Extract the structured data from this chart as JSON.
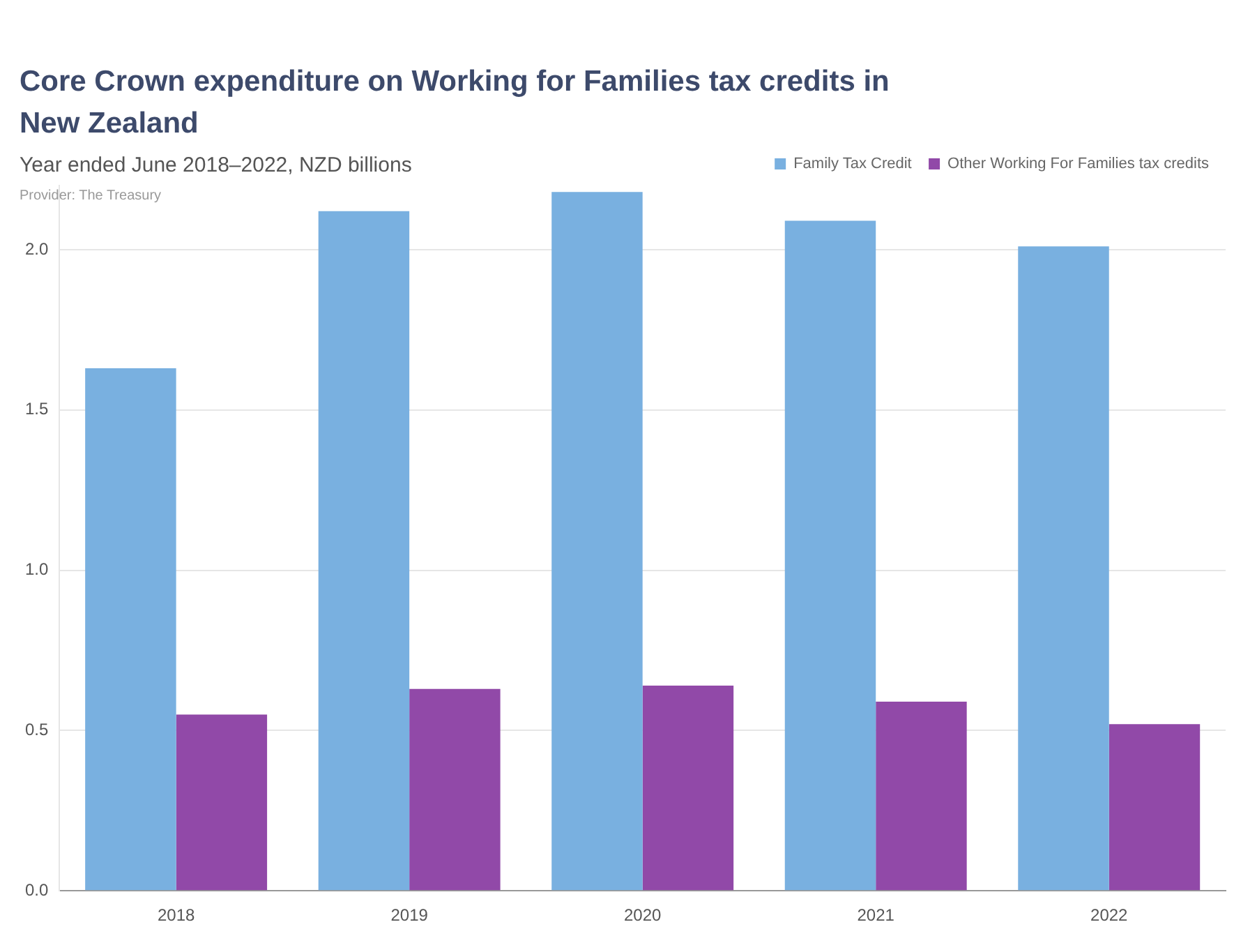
{
  "chart_data": {
    "type": "bar",
    "title": "Core Crown expenditure on Working for Families tax credits in New Zealand",
    "subtitle": "Year ended June 2018–2022, NZD billions",
    "annotations": [
      "Provider: The Treasury"
    ],
    "categories": [
      "2018",
      "2019",
      "2020",
      "2021",
      "2022"
    ],
    "series": [
      {
        "name": "Family Tax Credit",
        "color": "#79b0e0",
        "values": [
          1.63,
          2.12,
          2.18,
          2.09,
          2.01
        ]
      },
      {
        "name": "Other Working For Families tax credits",
        "color": "#9149a8",
        "values": [
          0.55,
          0.63,
          0.64,
          0.59,
          0.52
        ]
      }
    ],
    "ylim": [
      0,
      2.2
    ],
    "yticks": [
      {
        "value": 0,
        "label": "0.0"
      },
      {
        "value": 0.5,
        "label": "0.5"
      },
      {
        "value": 1,
        "label": "1.0"
      },
      {
        "value": 1.5,
        "label": "1.5"
      },
      {
        "value": 2,
        "label": "2.0"
      }
    ],
    "grid": "y",
    "legend": "top right"
  }
}
